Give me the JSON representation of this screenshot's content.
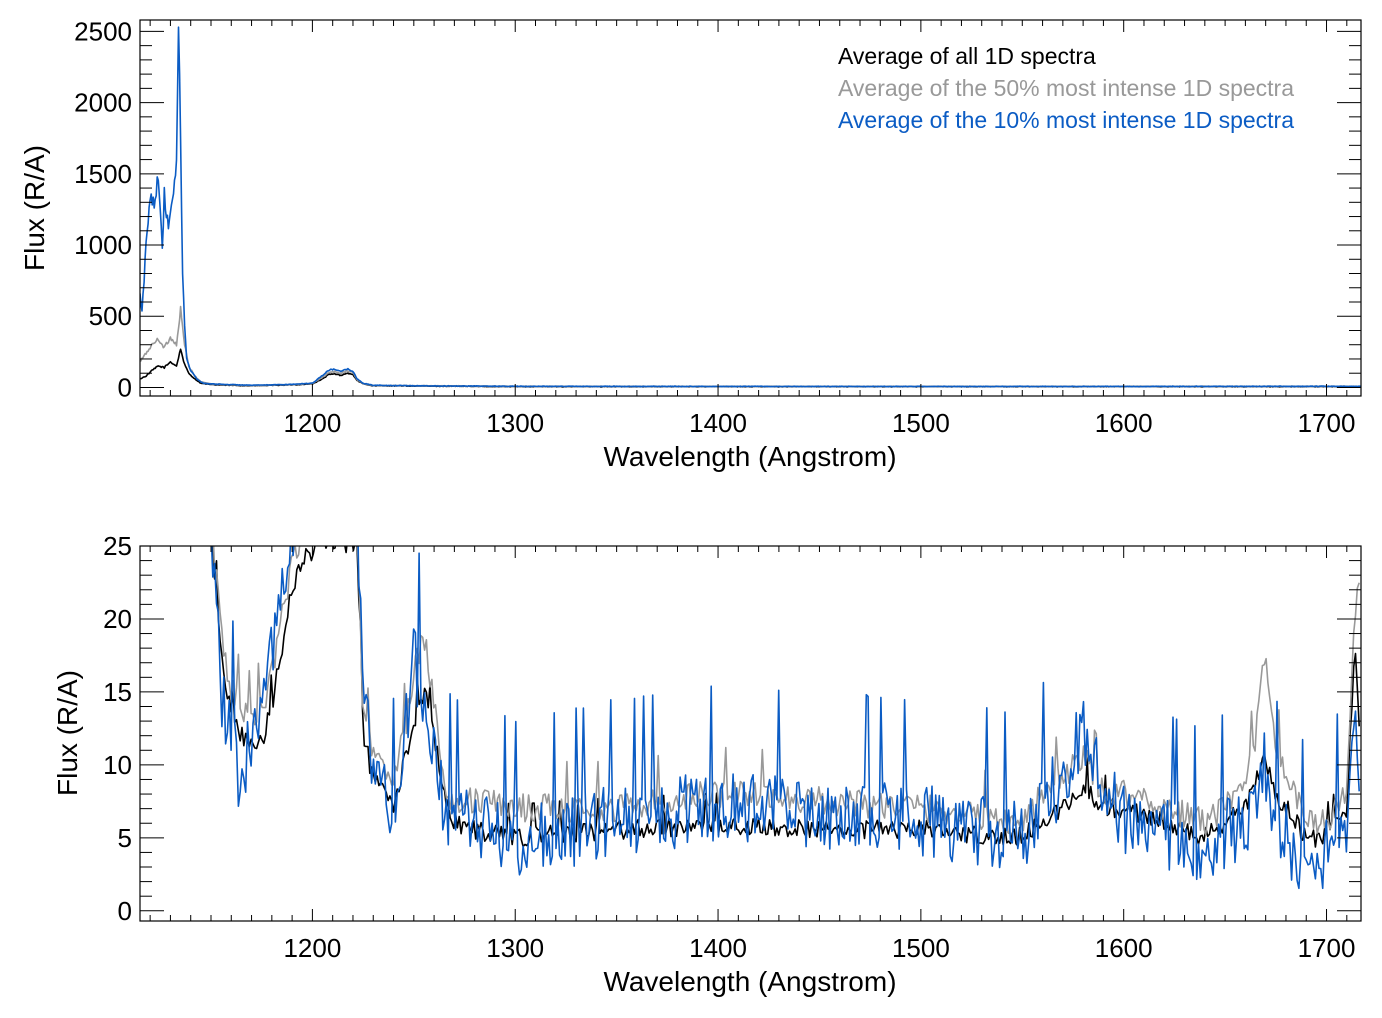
{
  "chart_data": [
    {
      "type": "line",
      "xlabel": "Wavelength (Angstrom)",
      "ylabel": "Flux (R/A)",
      "xlim": [
        1115,
        1717
      ],
      "ylim": [
        -60,
        2580
      ],
      "xticks": [
        1200,
        1300,
        1400,
        1500,
        1600,
        1700
      ],
      "yticks": [
        0,
        500,
        1000,
        1500,
        2000,
        2500
      ],
      "legend": {
        "placement": "top-right",
        "entries": [
          {
            "label": "Average of all 1D spectra",
            "color": "#000000"
          },
          {
            "label": "Average of the 50% most intense 1D spectra",
            "color": "#999999"
          },
          {
            "label": "Average of the 10% most intense 1D spectra",
            "color": "#0b5cc4"
          }
        ]
      },
      "series": [
        {
          "name": "Average of all 1D spectra",
          "color": "#000000",
          "x": [
            1115,
            1118,
            1121,
            1124,
            1127,
            1130,
            1133,
            1135,
            1137,
            1139,
            1142,
            1145,
            1150,
            1160,
            1170,
            1180,
            1190,
            1200,
            1205,
            1208,
            1211,
            1214,
            1217,
            1220,
            1222,
            1225,
            1230,
            1250,
            1300,
            1400,
            1500,
            1600,
            1700,
            1717
          ],
          "y": [
            60,
            80,
            120,
            150,
            140,
            180,
            150,
            270,
            160,
            100,
            60,
            30,
            20,
            15,
            12,
            15,
            18,
            25,
            60,
            90,
            95,
            85,
            100,
            90,
            50,
            25,
            12,
            10,
            6,
            6,
            6,
            6,
            6,
            6
          ]
        },
        {
          "name": "Average of the 50% most intense 1D spectra",
          "color": "#999999",
          "x": [
            1115,
            1118,
            1121,
            1124,
            1127,
            1130,
            1133,
            1135,
            1137,
            1139,
            1142,
            1145,
            1150,
            1160,
            1170,
            1180,
            1190,
            1200,
            1205,
            1208,
            1211,
            1214,
            1217,
            1220,
            1222,
            1225,
            1230,
            1250,
            1300,
            1400,
            1500,
            1600,
            1700,
            1717
          ],
          "y": [
            180,
            240,
            300,
            340,
            280,
            350,
            300,
            550,
            300,
            150,
            80,
            40,
            25,
            18,
            14,
            17,
            20,
            28,
            70,
            105,
            110,
            100,
            115,
            105,
            55,
            28,
            14,
            12,
            8,
            7,
            7,
            7,
            8,
            8
          ]
        },
        {
          "name": "Average of the 10% most intense 1D spectra",
          "color": "#0b5cc4",
          "x": [
            1115,
            1116,
            1118,
            1120,
            1122,
            1124,
            1126,
            1127,
            1129,
            1131,
            1133,
            1134,
            1135,
            1136,
            1137,
            1138,
            1140,
            1143,
            1146,
            1150,
            1160,
            1170,
            1180,
            1190,
            1200,
            1205,
            1208,
            1211,
            1214,
            1217,
            1220,
            1222,
            1225,
            1230,
            1250,
            1300,
            1400,
            1500,
            1600,
            1700,
            1717
          ],
          "y": [
            650,
            520,
            1000,
            1350,
            1300,
            1500,
            1000,
            1350,
            1100,
            1300,
            1600,
            2550,
            1700,
            800,
            450,
            200,
            120,
            60,
            30,
            25,
            20,
            15,
            18,
            22,
            30,
            85,
            120,
            130,
            110,
            130,
            115,
            60,
            30,
            15,
            12,
            8,
            7,
            7,
            7,
            8,
            8
          ]
        }
      ]
    },
    {
      "type": "line",
      "xlabel": "Wavelength (Angstrom)",
      "ylabel": "Flux (R/A)",
      "xlim": [
        1115,
        1717
      ],
      "ylim": [
        -0.7,
        25
      ],
      "xticks": [
        1200,
        1300,
        1400,
        1500,
        1600,
        1700
      ],
      "yticks": [
        0,
        5,
        10,
        15,
        20,
        25
      ],
      "series": [
        {
          "name": "Average of all 1D spectra",
          "color": "#000000",
          "noise": 0.7,
          "x": [
            1150,
            1155,
            1160,
            1165,
            1170,
            1175,
            1180,
            1185,
            1190,
            1195,
            1200,
            1205,
            1222,
            1225,
            1230,
            1235,
            1240,
            1245,
            1250,
            1255,
            1260,
            1265,
            1270,
            1280,
            1300,
            1350,
            1400,
            1450,
            1500,
            1550,
            1560,
            1570,
            1580,
            1590,
            1600,
            1620,
            1640,
            1660,
            1665,
            1670,
            1675,
            1690,
            1700,
            1710,
            1714,
            1717
          ],
          "y": [
            26,
            18,
            13,
            12,
            11,
            11.5,
            14,
            18,
            22,
            24,
            24.5,
            25.5,
            25,
            12,
            9,
            8,
            7,
            10,
            13,
            15,
            12,
            8,
            6,
            5.5,
            5,
            5.5,
            5.8,
            5.5,
            5.5,
            5,
            6,
            7,
            8.5,
            7,
            7,
            6,
            5,
            7,
            9,
            10.5,
            8,
            5,
            5,
            7,
            18,
            10
          ]
        },
        {
          "name": "Average of the 50% most intense 1D spectra",
          "color": "#999999",
          "noise": 1.0,
          "x": [
            1150,
            1155,
            1160,
            1165,
            1170,
            1175,
            1180,
            1185,
            1190,
            1195,
            1200,
            1205,
            1222,
            1225,
            1230,
            1235,
            1240,
            1245,
            1250,
            1255,
            1260,
            1265,
            1270,
            1280,
            1300,
            1350,
            1400,
            1450,
            1500,
            1550,
            1560,
            1570,
            1580,
            1590,
            1600,
            1620,
            1640,
            1660,
            1665,
            1670,
            1675,
            1690,
            1700,
            1710,
            1714,
            1717
          ],
          "y": [
            27,
            19,
            15,
            14,
            13,
            14,
            16,
            20,
            24,
            26,
            26,
            27,
            26,
            13,
            11,
            10,
            9,
            12,
            16,
            19,
            14,
            9,
            7,
            7.5,
            7,
            7,
            8,
            7.5,
            7,
            6,
            8,
            9,
            10.5,
            8,
            8,
            7,
            6,
            8,
            12,
            18,
            11,
            6,
            6,
            8,
            20,
            24
          ]
        },
        {
          "name": "Average of the 10% most intense 1D spectra",
          "color": "#0b5cc4",
          "noise": 2.6,
          "x": [
            1150,
            1155,
            1160,
            1165,
            1170,
            1175,
            1180,
            1185,
            1190,
            1195,
            1200,
            1205,
            1222,
            1225,
            1230,
            1235,
            1240,
            1245,
            1250,
            1255,
            1260,
            1265,
            1270,
            1280,
            1300,
            1350,
            1400,
            1450,
            1500,
            1550,
            1560,
            1570,
            1580,
            1590,
            1600,
            1620,
            1640,
            1660,
            1665,
            1670,
            1675,
            1690,
            1700,
            1710,
            1714,
            1717
          ],
          "y": [
            27,
            15,
            12,
            8,
            12,
            14,
            18,
            22,
            26,
            27,
            27,
            28,
            27,
            14,
            10,
            8,
            6,
            12,
            17,
            15,
            10,
            7,
            6,
            6,
            4.5,
            6,
            7,
            6.5,
            6,
            5,
            7,
            9,
            12,
            9,
            6,
            5,
            4,
            6,
            8,
            10,
            6,
            3,
            4,
            6,
            16,
            8
          ]
        }
      ]
    }
  ]
}
